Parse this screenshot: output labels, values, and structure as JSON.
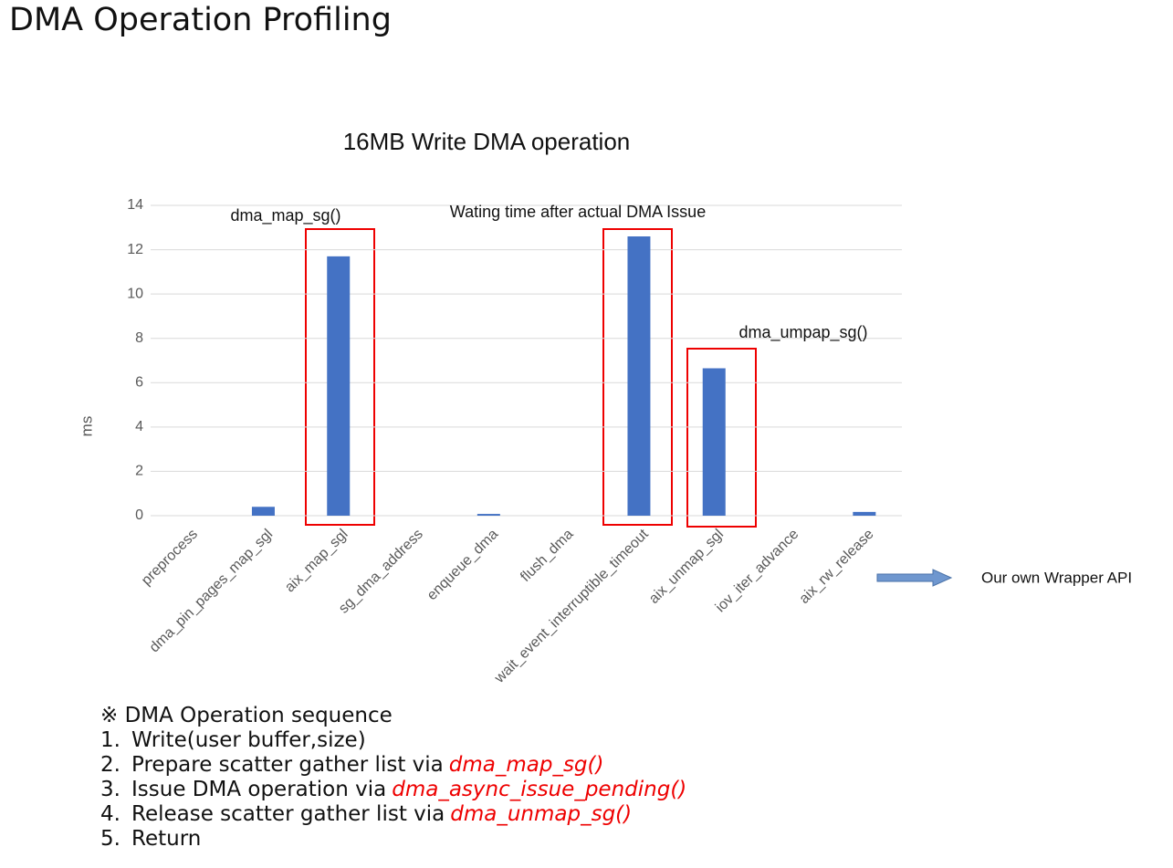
{
  "slide_title": "DMA Operation Profiling",
  "chart_data": {
    "type": "bar",
    "title": "16MB Write DMA operation",
    "y_label": "ms",
    "categories": [
      "preprocess",
      "dma_pin_pages_map_sgl",
      "aix_map_sgl",
      "sg_dma_address",
      "enqueue_dma",
      "flush_dma",
      "wait_event_interruptible_timeout",
      "aix_unmap_sgl",
      "iov_iter_advance",
      "aix_rw_release"
    ],
    "values": [
      0,
      0.4,
      11.7,
      0,
      0.08,
      0,
      12.6,
      6.65,
      0,
      0.17
    ],
    "color": "#4472c4",
    "ylim": [
      0,
      14
    ],
    "yticks": [
      0,
      2,
      4,
      6,
      8,
      10,
      12,
      14
    ],
    "grid": true,
    "annotations": [
      "dma_map_sg()",
      "Wating time after actual DMA Issue",
      "dma_umpap_sg()"
    ],
    "note": "Our own Wrapper API"
  },
  "sequence": {
    "heading": "※ DMA Operation sequence",
    "items": [
      {
        "number": "1.",
        "text": "Write(user buffer,size)"
      },
      {
        "number": "2.",
        "text": "Prepare scatter gather list via",
        "func": "dma_map_sg()"
      },
      {
        "number": "3.",
        "text": "Issue DMA operation via",
        "func": "dma_async_issue_pending()"
      },
      {
        "number": "4.",
        "text": "Release scatter gather list via",
        "func": "dma_unmap_sg()"
      },
      {
        "number": "5.",
        "text": "Return"
      }
    ]
  }
}
